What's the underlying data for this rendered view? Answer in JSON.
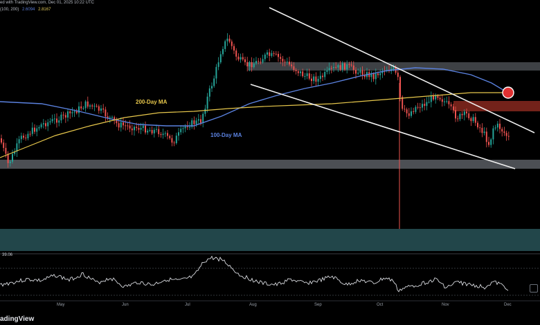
{
  "header": {
    "text": "ed with TradingView.com, Dec 01, 2025 10:22 UTC",
    "legend_prefix": "(100, 200)",
    "legend_value_1": "2.6094",
    "legend_value_2": "2.8167"
  },
  "labels": {
    "ma200": "200-Day MA",
    "ma100": "100-Day MA",
    "rsi_value": "39.06",
    "footer": "adingView"
  },
  "months": [
    "May",
    "Jun",
    "Jul",
    "Aug",
    "Sep",
    "Oct",
    "Nov",
    "Dec"
  ],
  "colors": {
    "bull": "#26a69a",
    "bear": "#ef5350",
    "ma100": "#5b82e0",
    "ma200": "#e8c84c",
    "zone": "#8a9099",
    "resistance_zone": "#c0392b",
    "volume_band": "#22464a",
    "rsi_line": "#d9dbe0"
  },
  "icons": [
    "tradingview-icon"
  ],
  "chart_data": {
    "type": "candlestick",
    "x_axis": "date",
    "y_ticks_shown": false,
    "indicators": [
      "100-Day MA",
      "200-Day MA",
      "RSI 39.06"
    ],
    "highlights": [
      "support zone",
      "resistance zone",
      "descending channel",
      "MA crossover"
    ]
  }
}
